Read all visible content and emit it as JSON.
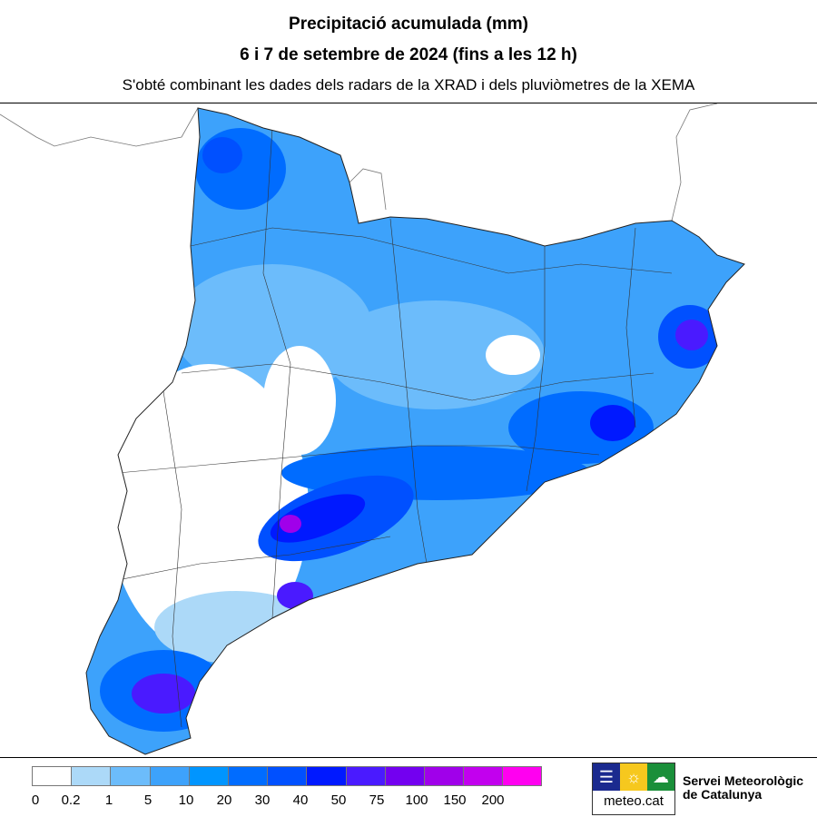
{
  "title": {
    "line1": "Precipitació acumulada (mm)",
    "line2": "6 i 7 de setembre de 2024 (fins a les 12 h)",
    "subtitle": "S'obté combinant les dades dels radars de la XRAD i dels pluviòmetres de la XEMA"
  },
  "legend": {
    "labels": [
      "0",
      "0.2",
      "1",
      "5",
      "10",
      "20",
      "30",
      "40",
      "50",
      "75",
      "100",
      "150",
      "200"
    ],
    "colors": [
      "#ffffff",
      "#acd9f8",
      "#6cbcfb",
      "#3da2fb",
      "#0095ff",
      "#006cff",
      "#0050ff",
      "#0019ff",
      "#4a1aff",
      "#7300f0",
      "#a000ea",
      "#c200ee",
      "#ff00f0"
    ]
  },
  "logo": {
    "brand": "meteo.cat",
    "org_line1": "Servei Meteorològic",
    "org_line2": "de Catalunya",
    "icons": [
      "waves-icon",
      "sun-icon",
      "cloud-icon"
    ]
  }
}
